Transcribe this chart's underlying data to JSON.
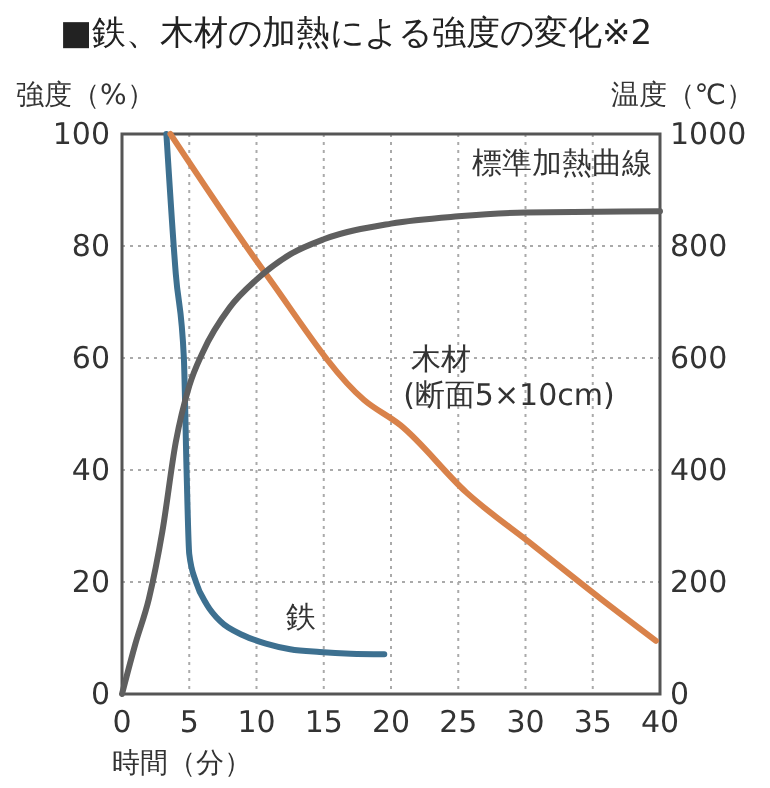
{
  "chart_data": {
    "type": "line",
    "title": "■鉄、木材の加熱による強度の変化※2",
    "xlabel": "時間（分）",
    "ylabel": "強度（%）",
    "y2label": "温度（℃）",
    "xlim": [
      0,
      40
    ],
    "xticks": [
      0,
      5,
      10,
      15,
      20,
      25,
      30,
      35,
      40
    ],
    "ylim": [
      0,
      100
    ],
    "yticks": [
      0,
      20,
      40,
      60,
      80,
      100
    ],
    "y2lim": [
      0,
      1000
    ],
    "y2ticks": [
      0,
      200,
      400,
      600,
      800,
      1000
    ],
    "grid": true,
    "line_style": "solid",
    "marker": "none",
    "series": [
      {
        "name": "鉄",
        "color": "#3d7090",
        "x": [
          3.3,
          4.0,
          4.6,
          4.8,
          5.0,
          5.5,
          6.3,
          7.3,
          9,
          10.7,
          12.5,
          14.7,
          17,
          19.5
        ],
        "values": [
          100,
          75,
          60,
          40,
          25,
          20,
          16,
          13,
          10.5,
          9,
          8,
          7.5,
          7.2,
          7.1
        ]
      },
      {
        "name": "木材\n(断面5×10cm)",
        "color": "#d9824a",
        "x": [
          3.6,
          10.7,
          18,
          20.7,
          25.6,
          30.6,
          35.6,
          39.7
        ],
        "values": [
          100,
          75,
          52.5,
          48,
          36,
          26.5,
          17,
          9.5
        ]
      },
      {
        "name": "標準加熱曲線",
        "color": "#5f5f5f",
        "axis": "y2",
        "x": [
          0,
          1,
          2,
          3,
          4,
          5,
          6,
          8,
          10,
          12.5,
          15,
          20,
          25,
          30,
          40
        ],
        "values": [
          0,
          90,
          170,
          290,
          450,
          550,
          610,
          690,
          740,
          785,
          812,
          840,
          853,
          860,
          862
        ]
      }
    ]
  }
}
